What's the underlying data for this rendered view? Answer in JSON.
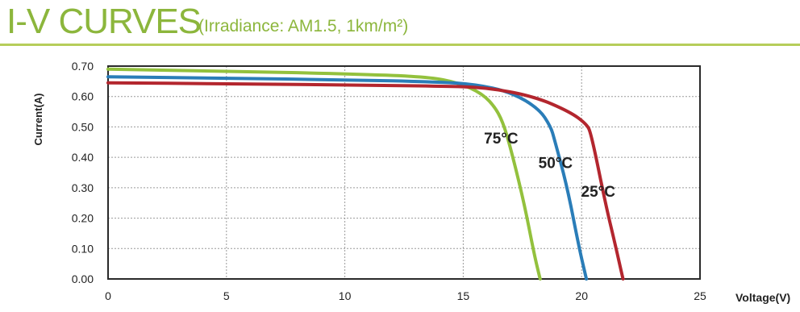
{
  "header": {
    "title": "I-V CURVES",
    "subtitle": "(Irradiance: AM1.5, 1km/m²)"
  },
  "colors": {
    "title_green": "#8cb63c",
    "frame": "#2a2a2a",
    "grid": "#9a9a9a"
  },
  "chart_data": {
    "type": "line",
    "title": "I-V CURVES",
    "subtitle": "(Irradiance: AM1.5, 1km/m²)",
    "xlabel": "Voltage(V)",
    "ylabel": "Current(A)",
    "xlim": [
      0,
      25
    ],
    "ylim": [
      0,
      0.7
    ],
    "xticks": [
      0,
      5,
      10,
      15,
      20,
      25
    ],
    "xtick_labels": [
      "0",
      "5",
      "10",
      "15",
      "20",
      "25"
    ],
    "yticks": [
      0,
      0.1,
      0.2,
      0.3,
      0.4,
      0.5,
      0.6,
      0.7
    ],
    "ytick_labels": [
      "0.00",
      "0.10",
      "0.20",
      "0.30",
      "0.40",
      "0.50",
      "0.60",
      "0.70"
    ],
    "grid": true,
    "legend": "none",
    "series": [
      {
        "name": "25°C",
        "color": "#b3262e",
        "label_at": [
          20.7,
          0.27
        ],
        "x": [
          0,
          5,
          10,
          14,
          16,
          18,
          19.5,
          20.2,
          20.4,
          21.0,
          21.4,
          21.75
        ],
        "y": [
          0.645,
          0.642,
          0.638,
          0.634,
          0.63,
          0.6,
          0.55,
          0.51,
          0.48,
          0.25,
          0.12,
          0.0
        ]
      },
      {
        "name": "50°C",
        "color": "#2a7db8",
        "label_at": [
          18.9,
          0.365
        ],
        "x": [
          0,
          5,
          10,
          14,
          15.5,
          17,
          18.2,
          18.7,
          18.85,
          19.4,
          19.9,
          20.2
        ],
        "y": [
          0.665,
          0.66,
          0.655,
          0.648,
          0.64,
          0.615,
          0.56,
          0.5,
          0.46,
          0.3,
          0.1,
          0.0
        ]
      },
      {
        "name": "75°C",
        "color": "#93c13d",
        "label_at": [
          16.6,
          0.445
        ],
        "x": [
          0,
          5,
          10,
          13.5,
          14.8,
          15.8,
          16.4,
          16.75,
          17.1,
          17.6,
          18.0,
          18.25
        ],
        "y": [
          0.69,
          0.683,
          0.675,
          0.665,
          0.645,
          0.61,
          0.56,
          0.5,
          0.4,
          0.24,
          0.08,
          0.0
        ]
      }
    ]
  }
}
